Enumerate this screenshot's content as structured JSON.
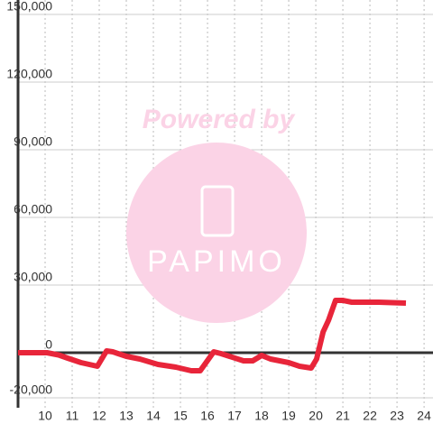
{
  "chart_data": {
    "type": "line",
    "watermark": {
      "line1": "Powered by",
      "line2": "PAPIMO"
    },
    "x": [
      9,
      10.07,
      10.5,
      10.83,
      11.33,
      11.93,
      12.27,
      12.5,
      13,
      13.5,
      14.17,
      14.83,
      15.4,
      15.73,
      16.23,
      16.5,
      17.33,
      17.67,
      18,
      18.33,
      19,
      19.4,
      19.83,
      20.03,
      20.27,
      20.47,
      20.73,
      21,
      21.33,
      22.33,
      23.33
    ],
    "series": [
      {
        "color": "#e8253a",
        "values": [
          0,
          0,
          -1000,
          -2400,
          -4400,
          -6000,
          800,
          400,
          -1600,
          -2800,
          -5200,
          -6400,
          -8000,
          -8000,
          400,
          -400,
          -3600,
          -3600,
          -1200,
          -2800,
          -4400,
          -6000,
          -6800,
          -2800,
          9200,
          14400,
          23200,
          23200,
          22400,
          22400,
          22000
        ]
      }
    ],
    "xlim": [
      9,
      24.33
    ],
    "xticks": [
      10,
      11,
      12,
      13,
      14,
      15,
      16,
      17,
      18,
      19,
      20,
      21,
      22,
      23,
      24
    ],
    "ylim": [
      -20000,
      150000
    ],
    "yticks": [
      {
        "value": -20000,
        "label": "-20,000"
      },
      0,
      {
        "value": 30000,
        "label": "30,000"
      },
      {
        "value": 60000,
        "label": "60,000"
      },
      {
        "value": 90000,
        "label": "90,000"
      },
      {
        "value": 120000,
        "label": "120,000"
      },
      {
        "value": 150000,
        "label": "150,000"
      }
    ],
    "grid": true
  }
}
